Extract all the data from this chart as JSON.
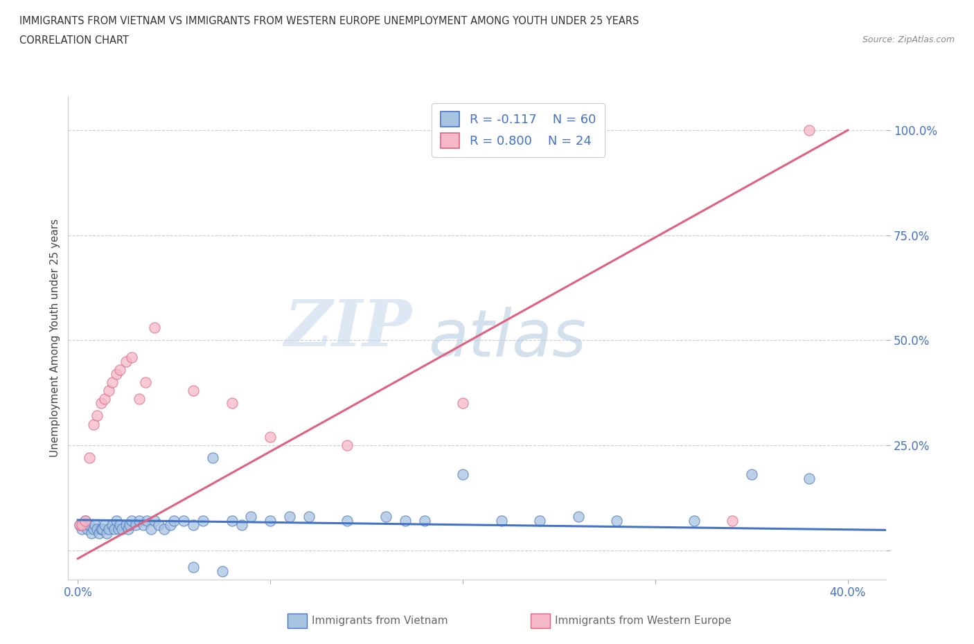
{
  "title_line1": "IMMIGRANTS FROM VIETNAM VS IMMIGRANTS FROM WESTERN EUROPE UNEMPLOYMENT AMONG YOUTH UNDER 25 YEARS",
  "title_line2": "CORRELATION CHART",
  "source_text": "Source: ZipAtlas.com",
  "ylabel": "Unemployment Among Youth under 25 years",
  "xlim": [
    -0.005,
    0.42
  ],
  "ylim": [
    -0.07,
    1.08
  ],
  "yticks": [
    0.0,
    0.25,
    0.5,
    0.75,
    1.0
  ],
  "ytick_labels": [
    "",
    "25.0%",
    "50.0%",
    "75.0%",
    "100.0%"
  ],
  "xticks": [
    0.0,
    0.1,
    0.2,
    0.3,
    0.4
  ],
  "xtick_labels": [
    "0.0%",
    "",
    "",
    "",
    "40.0%"
  ],
  "watermark_zip": "ZIP",
  "watermark_atlas": "atlas",
  "legend_r1": "R = -0.117",
  "legend_n1": "N = 60",
  "legend_r2": "R = 0.800",
  "legend_n2": "N = 24",
  "color_blue": "#a8c4e0",
  "color_pink": "#f4b8c8",
  "line_blue": "#4472c4",
  "line_pink": "#e06080",
  "label1": "Immigrants from Vietnam",
  "label2": "Immigrants from Western Europe",
  "blue_scatter_x": [
    0.001,
    0.002,
    0.003,
    0.004,
    0.005,
    0.006,
    0.007,
    0.008,
    0.009,
    0.01,
    0.011,
    0.012,
    0.013,
    0.014,
    0.015,
    0.016,
    0.018,
    0.019,
    0.02,
    0.021,
    0.022,
    0.023,
    0.025,
    0.026,
    0.027,
    0.028,
    0.03,
    0.032,
    0.034,
    0.036,
    0.038,
    0.04,
    0.042,
    0.045,
    0.048,
    0.05,
    0.055,
    0.06,
    0.065,
    0.07,
    0.08,
    0.09,
    0.1,
    0.11,
    0.12,
    0.14,
    0.16,
    0.17,
    0.18,
    0.2,
    0.22,
    0.24,
    0.26,
    0.28,
    0.32,
    0.35,
    0.38,
    0.06,
    0.075,
    0.085
  ],
  "blue_scatter_y": [
    0.06,
    0.05,
    0.06,
    0.07,
    0.05,
    0.06,
    0.04,
    0.05,
    0.06,
    0.05,
    0.04,
    0.05,
    0.05,
    0.06,
    0.04,
    0.05,
    0.06,
    0.05,
    0.07,
    0.05,
    0.06,
    0.05,
    0.06,
    0.05,
    0.06,
    0.07,
    0.06,
    0.07,
    0.06,
    0.07,
    0.05,
    0.07,
    0.06,
    0.05,
    0.06,
    0.07,
    0.07,
    0.06,
    0.07,
    0.22,
    0.07,
    0.08,
    0.07,
    0.08,
    0.08,
    0.07,
    0.08,
    0.07,
    0.07,
    0.18,
    0.07,
    0.07,
    0.08,
    0.07,
    0.07,
    0.18,
    0.17,
    -0.04,
    -0.05,
    0.06
  ],
  "pink_scatter_x": [
    0.001,
    0.002,
    0.004,
    0.006,
    0.008,
    0.01,
    0.012,
    0.014,
    0.016,
    0.018,
    0.02,
    0.022,
    0.025,
    0.028,
    0.032,
    0.035,
    0.04,
    0.06,
    0.08,
    0.1,
    0.14,
    0.2,
    0.34,
    0.38
  ],
  "pink_scatter_y": [
    0.06,
    0.06,
    0.07,
    0.22,
    0.3,
    0.32,
    0.35,
    0.36,
    0.38,
    0.4,
    0.42,
    0.43,
    0.45,
    0.46,
    0.36,
    0.4,
    0.53,
    0.38,
    0.35,
    0.27,
    0.25,
    0.35,
    0.07,
    1.0
  ],
  "blue_line_x": [
    0.0,
    0.42
  ],
  "blue_line_y": [
    0.072,
    0.048
  ],
  "pink_line_x": [
    0.0,
    0.4
  ],
  "pink_line_y": [
    -0.02,
    1.0
  ]
}
